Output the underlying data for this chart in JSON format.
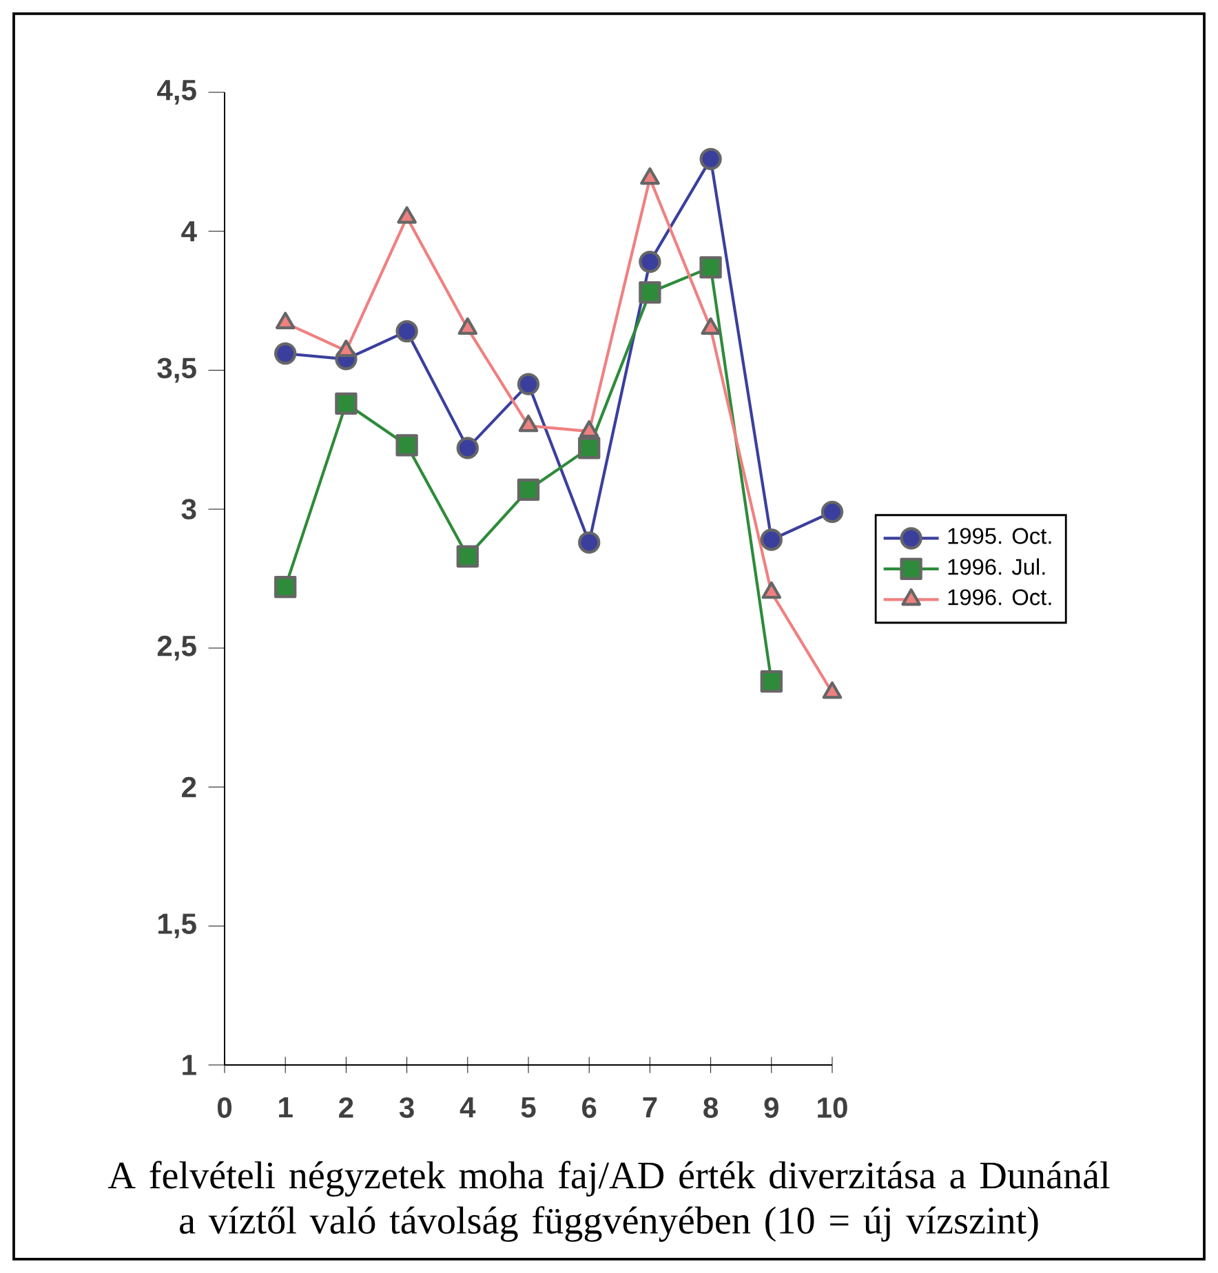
{
  "chart_data": {
    "type": "line",
    "x": [
      1,
      2,
      3,
      4,
      5,
      6,
      7,
      8,
      9,
      10
    ],
    "series": [
      {
        "name": "1995. Oct.",
        "color": "#3a3f9e",
        "marker": "circle",
        "values": [
          3.56,
          3.54,
          3.64,
          3.22,
          3.45,
          2.88,
          3.89,
          4.26,
          2.89,
          2.99
        ]
      },
      {
        "name": "1996. Jul.",
        "color": "#2e8b3a",
        "marker": "square",
        "values": [
          2.72,
          3.38,
          3.23,
          2.83,
          3.07,
          3.22,
          3.78,
          3.87,
          2.38,
          null
        ]
      },
      {
        "name": "1996. Oct.",
        "color": "#f08080",
        "marker": "triangle",
        "values": [
          3.67,
          3.57,
          4.05,
          3.65,
          3.3,
          3.28,
          4.19,
          3.65,
          2.7,
          2.34
        ]
      }
    ],
    "xlim": [
      0,
      10
    ],
    "xticks": [
      0,
      1,
      2,
      3,
      4,
      5,
      6,
      7,
      8,
      9,
      10
    ],
    "ylim": [
      1,
      4.5
    ],
    "yticks": [
      1,
      {
        "value": 1.5,
        "label": "1,5"
      },
      2,
      {
        "value": 2.5,
        "label": "2,5"
      },
      3,
      {
        "value": 3.5,
        "label": "3,5"
      },
      4,
      {
        "value": 4.5,
        "label": "4,5"
      }
    ],
    "legend": "right",
    "grid": false,
    "line_style": "solid",
    "annotations": [
      "A felvételi négyzetek moha faj/AD érték diverzitása a Dunánál  a víztől való távolság függvényében (10 = új vízszint)"
    ]
  }
}
